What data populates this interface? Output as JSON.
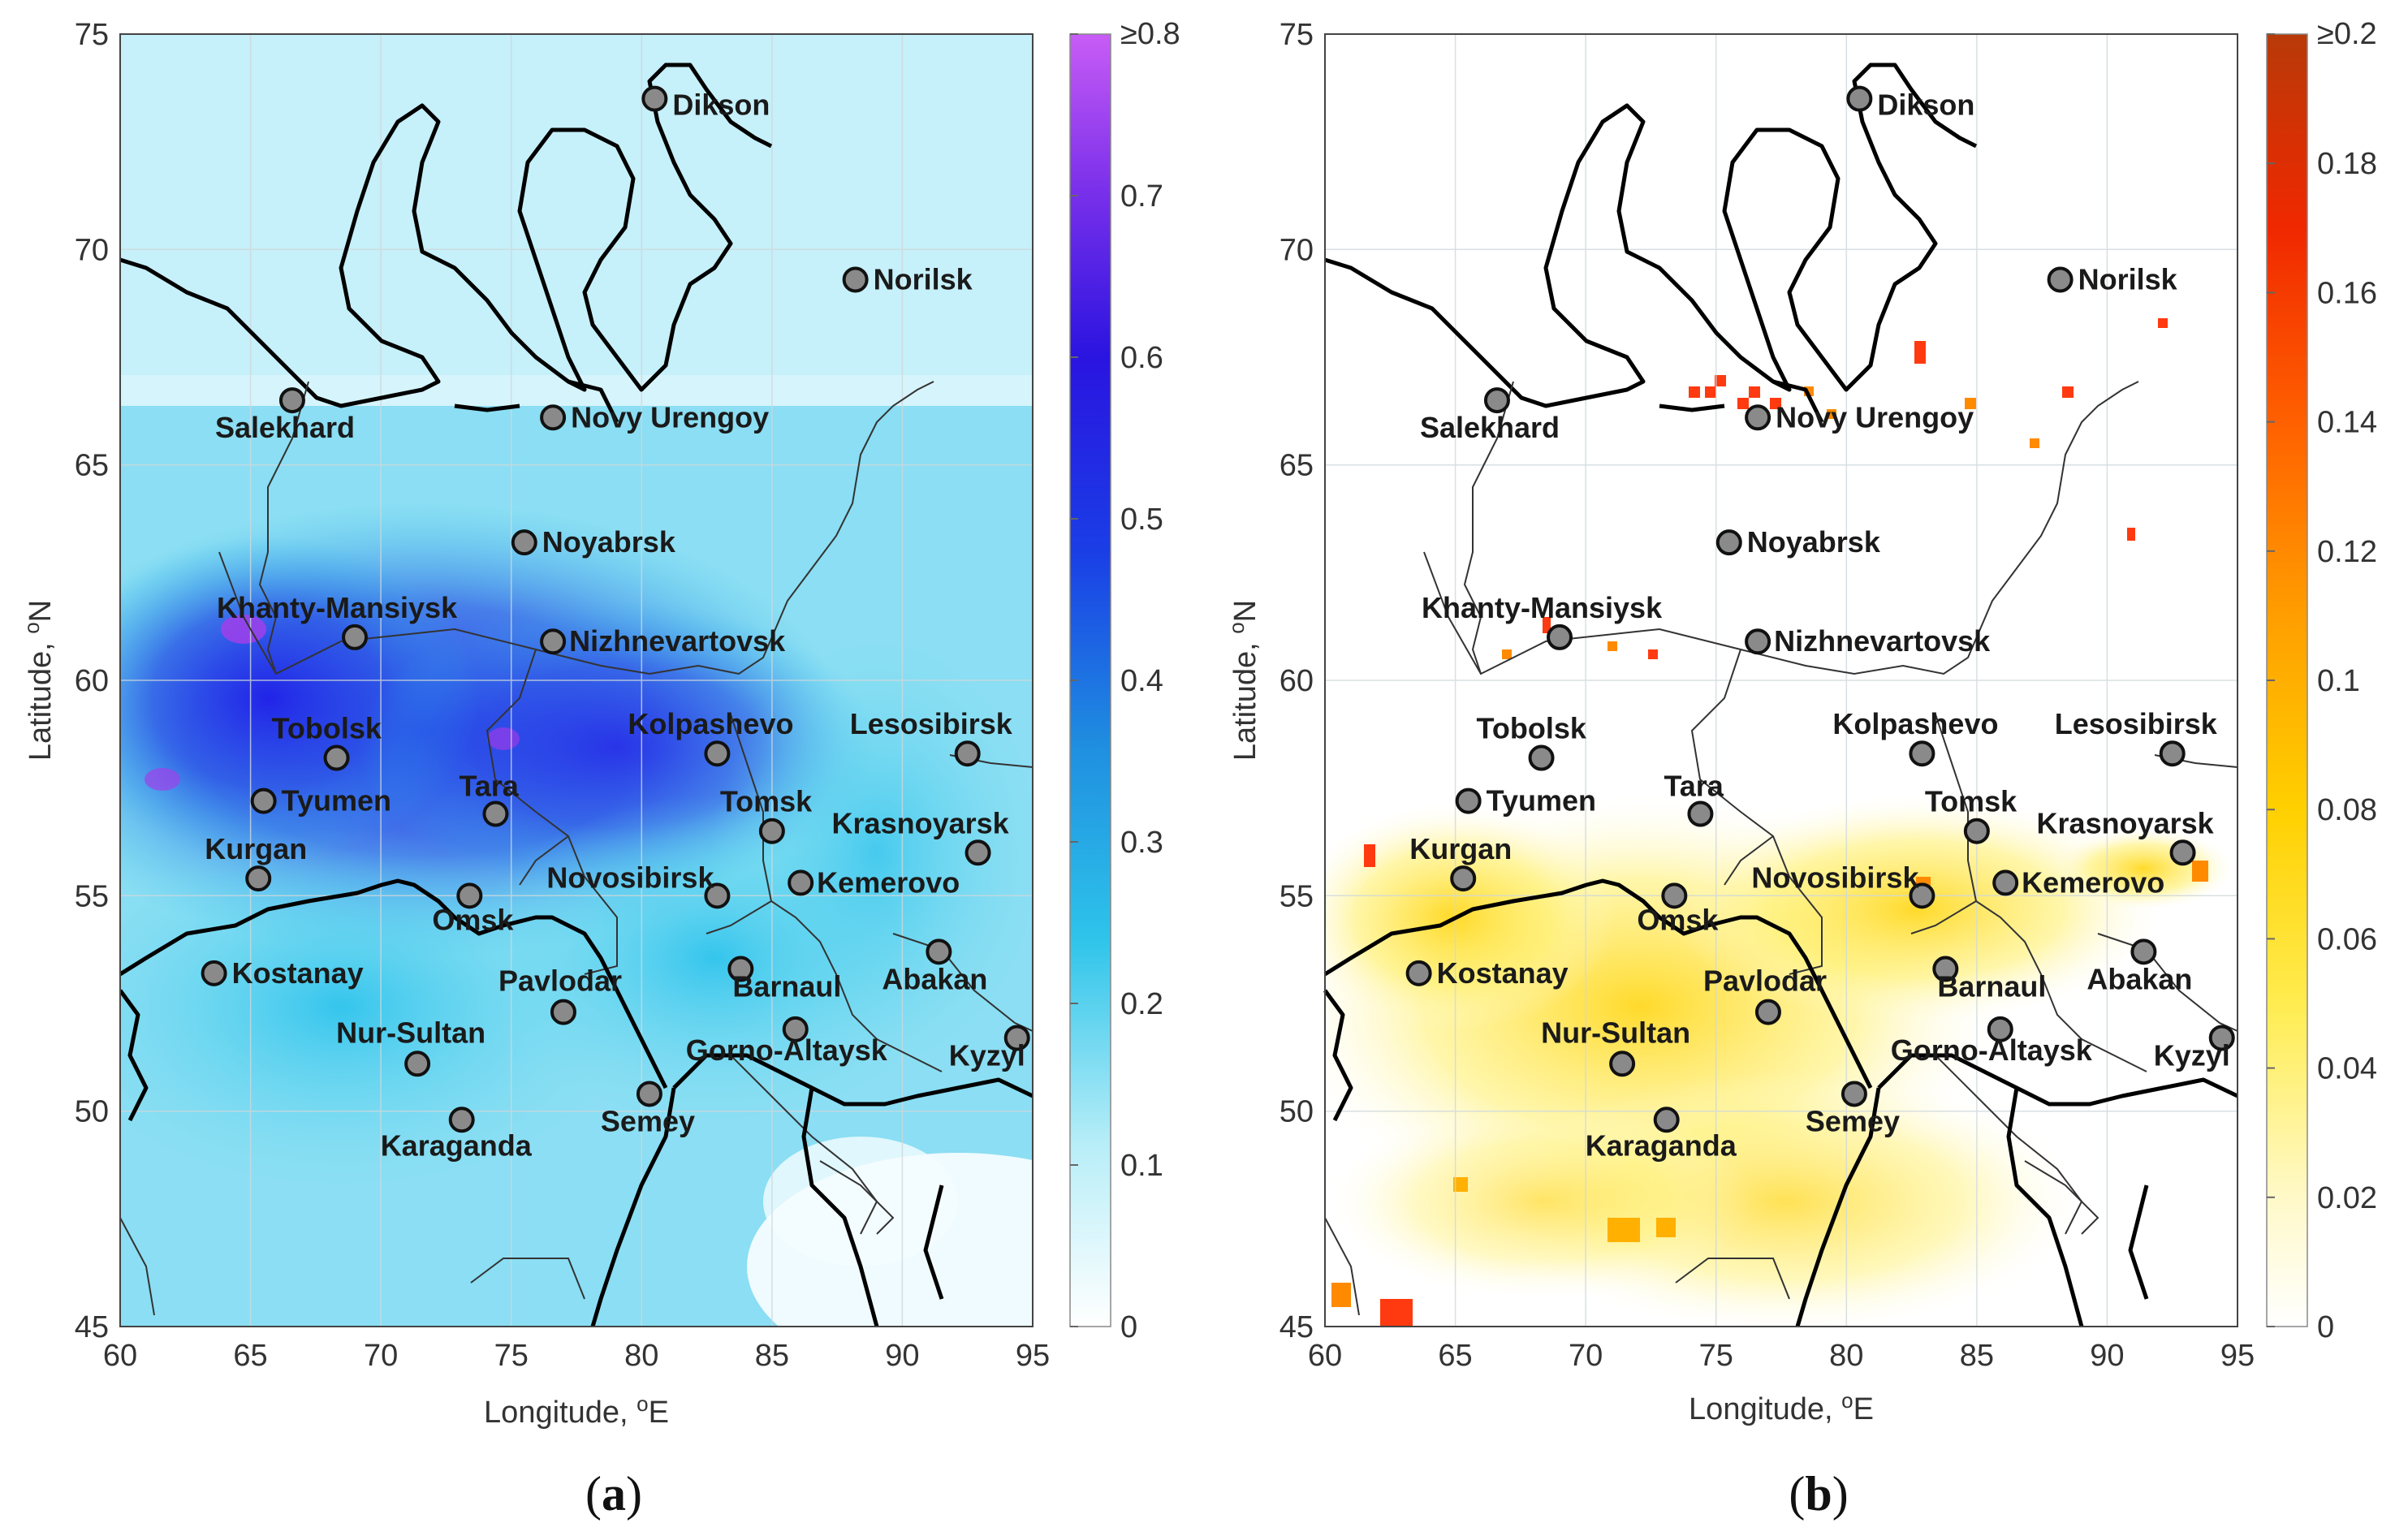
{
  "panels": [
    {
      "id": "a",
      "caption_open": "(",
      "caption_letter": "a",
      "caption_close": ")",
      "xlabel": "Longitude, ",
      "xlabel_sup": "o",
      "xlabel_unit": "E",
      "ylabel": "Latitude, ",
      "ylabel_sup": "o",
      "ylabel_unit": "N",
      "x_ticks": [
        "60",
        "65",
        "70",
        "75",
        "80",
        "85",
        "90",
        "95"
      ],
      "y_ticks": [
        "45",
        "50",
        "55",
        "60",
        "65",
        "70",
        "75"
      ],
      "colorbar_ticks": [
        "0",
        "0.1",
        "0.2",
        "0.3",
        "0.4",
        "0.5",
        "0.6",
        "0.7",
        "≥0.8"
      ],
      "colorbar_values": [
        0,
        0.1,
        0.2,
        0.3,
        0.4,
        0.5,
        0.6,
        0.7,
        0.8
      ],
      "colormap": [
        "#ffffff",
        "#6fdcf0",
        "#2ebfe6",
        "#1a8fe0",
        "#1a45e6",
        "#2a10e0",
        "#7a2ae8",
        "#c05af5"
      ],
      "field": "blue-cyan"
    },
    {
      "id": "b",
      "caption_open": "(",
      "caption_letter": "b",
      "caption_close": ")",
      "xlabel": "Longitude, ",
      "xlabel_sup": "o",
      "xlabel_unit": "E",
      "ylabel": "Latitude, ",
      "ylabel_sup": "o",
      "ylabel_unit": "N",
      "x_ticks": [
        "60",
        "65",
        "70",
        "75",
        "80",
        "85",
        "90",
        "95"
      ],
      "y_ticks": [
        "45",
        "50",
        "55",
        "60",
        "65",
        "70",
        "75"
      ],
      "colorbar_ticks": [
        "0",
        "0.02",
        "0.04",
        "0.06",
        "0.08",
        "0.1",
        "0.12",
        "0.14",
        "0.16",
        "0.18",
        "≥0.2"
      ],
      "colorbar_values": [
        0,
        0.02,
        0.04,
        0.06,
        0.08,
        0.1,
        0.12,
        0.14,
        0.16,
        0.18,
        0.2
      ],
      "colormap": [
        "#ffffff",
        "#fff7b0",
        "#ffe640",
        "#ffc800",
        "#ff9a00",
        "#ff5a00",
        "#f01e00",
        "#c83200"
      ],
      "field": "hot"
    }
  ],
  "map": {
    "lon_range": [
      60,
      95
    ],
    "lat_range": [
      45,
      75
    ]
  },
  "cities": [
    {
      "name": "Dikson",
      "lon": 80.5,
      "lat": 73.5
    },
    {
      "name": "Norilsk",
      "lon": 88.2,
      "lat": 69.3
    },
    {
      "name": "Salekhard",
      "lon": 66.6,
      "lat": 66.5
    },
    {
      "name": "Novy Urengoy",
      "lon": 76.6,
      "lat": 66.1
    },
    {
      "name": "Noyabrsk",
      "lon": 75.5,
      "lat": 63.2
    },
    {
      "name": "Khanty-Mansiysk",
      "lon": 69.0,
      "lat": 61.0
    },
    {
      "name": "Nizhnevartovsk",
      "lon": 76.6,
      "lat": 60.9
    },
    {
      "name": "Tobolsk",
      "lon": 68.3,
      "lat": 58.2
    },
    {
      "name": "Kolpashevo",
      "lon": 82.9,
      "lat": 58.3
    },
    {
      "name": "Lesosibirsk",
      "lon": 92.5,
      "lat": 58.3
    },
    {
      "name": "Tyumen",
      "lon": 65.5,
      "lat": 57.2
    },
    {
      "name": "Tara",
      "lon": 74.4,
      "lat": 56.9
    },
    {
      "name": "Tomsk",
      "lon": 85.0,
      "lat": 56.5
    },
    {
      "name": "Krasnoyarsk",
      "lon": 92.9,
      "lat": 56.0
    },
    {
      "name": "Kurgan",
      "lon": 65.3,
      "lat": 55.4
    },
    {
      "name": "Omsk",
      "lon": 73.4,
      "lat": 55.0
    },
    {
      "name": "Novosibirsk",
      "lon": 82.9,
      "lat": 55.0
    },
    {
      "name": "Kemerovo",
      "lon": 86.1,
      "lat": 55.3
    },
    {
      "name": "Kostanay",
      "lon": 63.6,
      "lat": 53.2
    },
    {
      "name": "Barnaul",
      "lon": 83.8,
      "lat": 53.3
    },
    {
      "name": "Abakan",
      "lon": 91.4,
      "lat": 53.7
    },
    {
      "name": "Pavlodar",
      "lon": 77.0,
      "lat": 52.3
    },
    {
      "name": "Nur-Sultan",
      "lon": 71.4,
      "lat": 51.1
    },
    {
      "name": "Gorno-Altaysk",
      "lon": 85.9,
      "lat": 51.9
    },
    {
      "name": "Kyzyl",
      "lon": 94.4,
      "lat": 51.7
    },
    {
      "name": "Semey",
      "lon": 80.3,
      "lat": 50.4
    },
    {
      "name": "Karaganda",
      "lon": 73.1,
      "lat": 49.8
    }
  ]
}
